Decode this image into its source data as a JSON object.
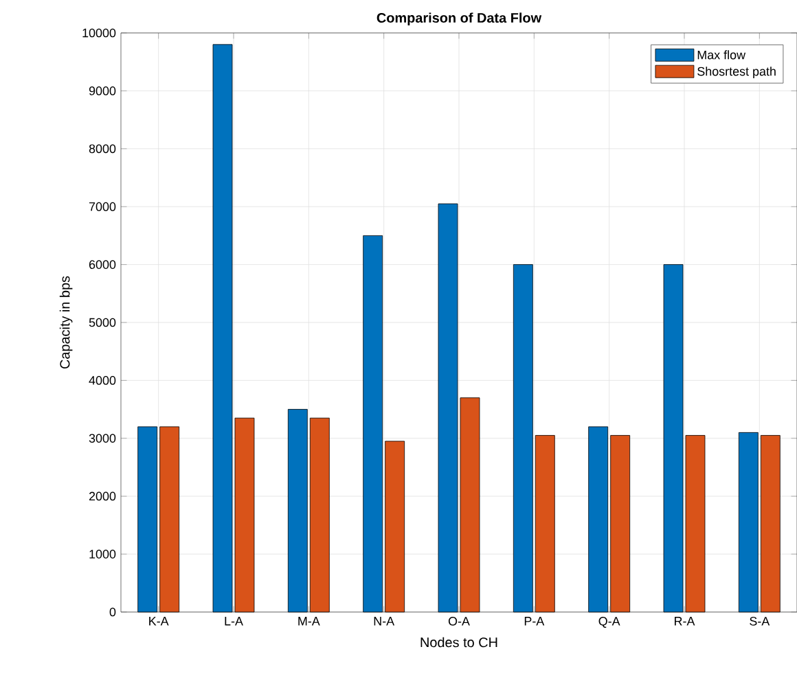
{
  "chart_data": {
    "type": "bar",
    "title": "Comparison of Data Flow",
    "xlabel": "Nodes to CH",
    "ylabel": "Capacity in bps",
    "categories": [
      "K-A",
      "L-A",
      "M-A",
      "N-A",
      "O-A",
      "P-A",
      "Q-A",
      "R-A",
      "S-A"
    ],
    "series": [
      {
        "name": "Max flow",
        "color": "#0072bd",
        "values": [
          3200,
          9800,
          3500,
          6500,
          7050,
          6000,
          3200,
          6000,
          3100
        ]
      },
      {
        "name": "Shosrtest path",
        "color": "#d95319",
        "values": [
          3200,
          3350,
          3350,
          2950,
          3700,
          3050,
          3050,
          3050,
          3050
        ]
      }
    ],
    "ylim": [
      0,
      10000
    ],
    "yticks": [
      0,
      1000,
      2000,
      3000,
      4000,
      5000,
      6000,
      7000,
      8000,
      9000,
      10000
    ],
    "grid": true,
    "legend": "top right"
  }
}
